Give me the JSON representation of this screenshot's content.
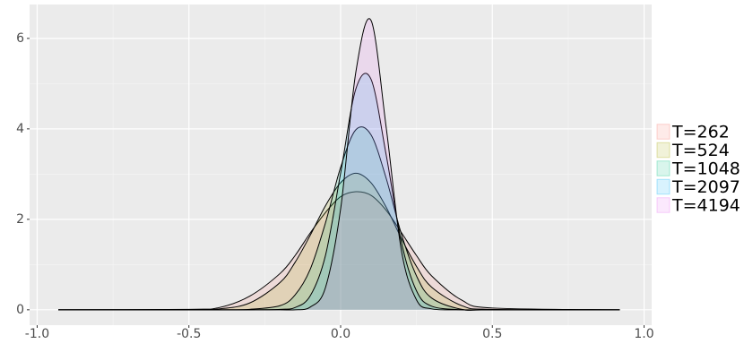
{
  "chart_data": {
    "type": "density",
    "x": [
      -0.93,
      -0.5,
      -0.4,
      -0.3,
      -0.2,
      -0.15,
      -0.1,
      -0.05,
      0,
      0.05,
      0.1,
      0.15,
      0.2,
      0.25,
      0.3,
      0.4,
      0.5,
      0.92
    ],
    "series": [
      {
        "name": "T=262",
        "color": "#f8766d",
        "values": [
          0,
          0.01,
          0.05,
          0.3,
          0.8,
          1.2,
          1.7,
          2.15,
          2.5,
          2.61,
          2.53,
          2.2,
          1.71,
          1.2,
          0.75,
          0.21,
          0.04,
          0
        ]
      },
      {
        "name": "T=524",
        "color": "#a3a500",
        "values": [
          0,
          0,
          0.02,
          0.15,
          0.6,
          1.05,
          1.65,
          2.3,
          2.81,
          3.02,
          2.81,
          2.27,
          1.58,
          0.96,
          0.5,
          0.09,
          0.01,
          0
        ]
      },
      {
        "name": "T=1048",
        "color": "#00bf7d",
        "values": [
          0,
          0,
          0,
          0.01,
          0.09,
          0.33,
          0.9,
          1.92,
          3.15,
          3.98,
          3.87,
          2.91,
          1.68,
          0.75,
          0.26,
          0.01,
          0,
          0
        ]
      },
      {
        "name": "T=2097",
        "color": "#00b0f6",
        "values": [
          0,
          0,
          0,
          0,
          0.01,
          0.05,
          0.31,
          1.2,
          3.02,
          4.88,
          5.1,
          3.43,
          1.5,
          0.42,
          0.08,
          0,
          0,
          0
        ]
      },
      {
        "name": "T=4194",
        "color": "#e76bf3",
        "values": [
          0,
          0,
          0,
          0,
          0,
          0,
          0.06,
          0.49,
          2.23,
          5.25,
          6.4,
          4.04,
          1.32,
          0.22,
          0.02,
          0,
          0,
          0
        ]
      }
    ],
    "xlim": [
      -1.025,
      1.025
    ],
    "ylim": [
      -0.34,
      6.75
    ],
    "xticks": [
      {
        "value": -1,
        "label": "-1.0"
      },
      {
        "value": -0.5,
        "label": "-0.5"
      },
      {
        "value": 0,
        "label": "0.0"
      },
      {
        "value": 0.5,
        "label": "0.5"
      },
      {
        "value": 1,
        "label": "1.0"
      }
    ],
    "yticks": [
      0,
      2,
      4,
      6
    ],
    "grid": true,
    "legend": "right"
  }
}
